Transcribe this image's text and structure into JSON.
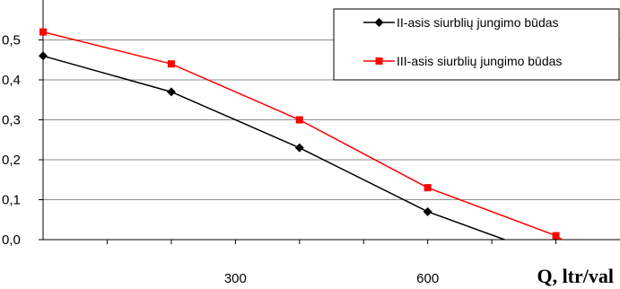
{
  "chart_data": {
    "type": "line",
    "title": "",
    "xlabel": "Q, ltr/val",
    "ylabel": "",
    "xlim": [
      0,
      900
    ],
    "ylim": [
      0,
      0.6
    ],
    "x_ticks": [
      300,
      600
    ],
    "y_ticks": [
      0.0,
      0.1,
      0.2,
      0.3,
      0.4,
      0.5
    ],
    "y_tick_labels": [
      "0,0",
      "0,1",
      "0,2",
      "0,3",
      "0,4",
      "0,5"
    ],
    "grid": "horizontal",
    "legend_position": "top-right",
    "series": [
      {
        "name": "II-asis siurblių jungimo būdas",
        "color": "#000000",
        "marker": "diamond",
        "points": [
          [
            0,
            0.46
          ],
          [
            200,
            0.37
          ],
          [
            400,
            0.23
          ],
          [
            600,
            0.07
          ],
          [
            720,
            0.0
          ]
        ]
      },
      {
        "name": "III-asis siurblių jungimo būdas",
        "color": "#ff0000",
        "marker": "square",
        "points": [
          [
            0,
            0.52
          ],
          [
            200,
            0.44
          ],
          [
            400,
            0.3
          ],
          [
            600,
            0.13
          ],
          [
            800,
            0.01
          ],
          [
            810,
            0.0
          ]
        ]
      }
    ]
  }
}
